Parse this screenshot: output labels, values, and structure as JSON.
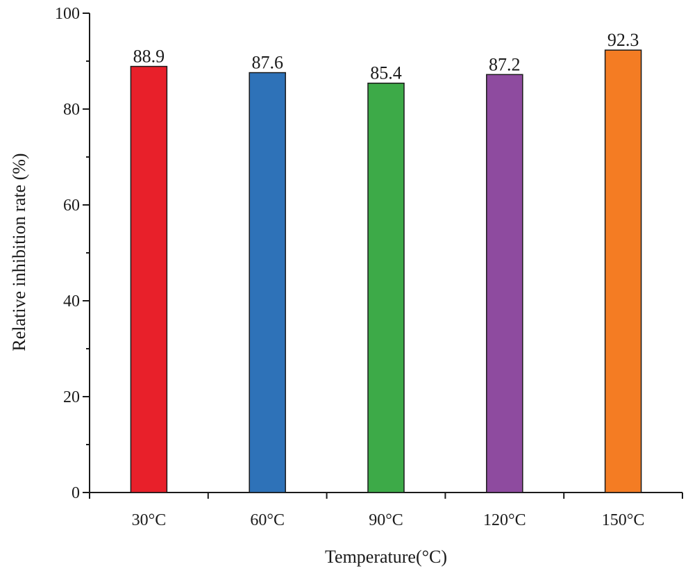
{
  "chart_data": {
    "type": "bar",
    "categories": [
      "30°C",
      "60°C",
      "90°C",
      "120°C",
      "150°C"
    ],
    "values": [
      88.9,
      87.6,
      85.4,
      87.2,
      92.3
    ],
    "value_labels": [
      "88.9",
      "87.6",
      "85.4",
      "87.2",
      "92.3"
    ],
    "bar_colors": [
      "#e8202a",
      "#2e72b8",
      "#3daa48",
      "#8e4b9f",
      "#f47c23"
    ],
    "title": "",
    "xlabel": "Temperature(°C)",
    "ylabel": "Relative inhibition rate (%)",
    "ylim": [
      0,
      100
    ],
    "yticks": [
      0,
      20,
      40,
      60,
      80,
      100
    ],
    "ytick_labels": [
      "0",
      "20",
      "40",
      "60",
      "80",
      "100"
    ],
    "grid": false,
    "legend": "none"
  }
}
